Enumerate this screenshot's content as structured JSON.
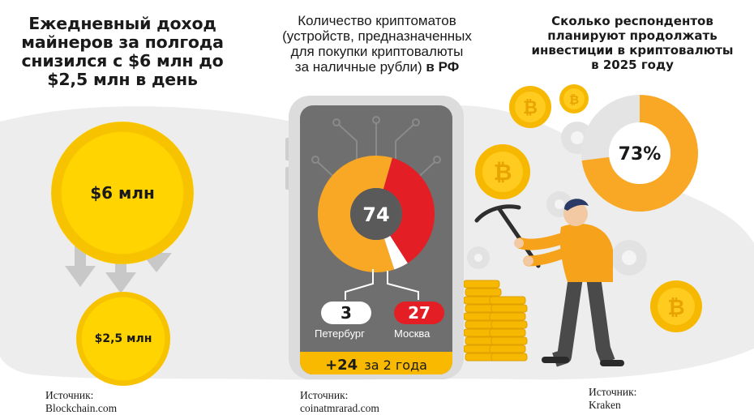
{
  "panel_left": {
    "title": "Ежедневный доход майнеров за полгода снизился с $6 млн до $2,5 млн в день",
    "big_coin_label": "$6 млн",
    "small_coin_label": "$2,5 млн",
    "source": "Источник:  Blockchain.com"
  },
  "panel_middle": {
    "title_lines": [
      "Количество криптоматов",
      "(устройств, предназначенных",
      "для покупки криптовалюты",
      "за наличные рубли)"
    ],
    "title_bold_suffix": "в РФ",
    "total_label": "74",
    "spb_value": "3",
    "spb_label": "Петербург",
    "msk_value": "27",
    "msk_label": "Москва",
    "growth_value": "+24",
    "growth_label": "за 2 года",
    "source": "Источник: coinatmrarad.com"
  },
  "panel_right": {
    "title": "Сколько респондентов планируют продолжать инвестиции в криптовалюты в 2025 году",
    "donut_label": "73%",
    "source": "Источник: Kraken"
  },
  "colors": {
    "yellow": "#ffd400",
    "orange": "#f9a825",
    "red": "#e31e24",
    "gray_bg": "#ececec",
    "dark_gray": "#5a5a5a"
  },
  "chart_data": [
    {
      "type": "pie",
      "categories": [
        "Москва",
        "Петербург",
        ""
      ],
      "values": [
        27,
        3,
        44
      ],
      "total": 74
    },
    {
      "type": "pie",
      "categories": [
        "",
        ""
      ],
      "values": [
        73,
        27
      ],
      "unit": "%"
    },
    {
      "type": "bar",
      "categories": [
        "",
        ""
      ],
      "values": [
        6,
        2.5
      ],
      "unit": "$ млн"
    }
  ]
}
